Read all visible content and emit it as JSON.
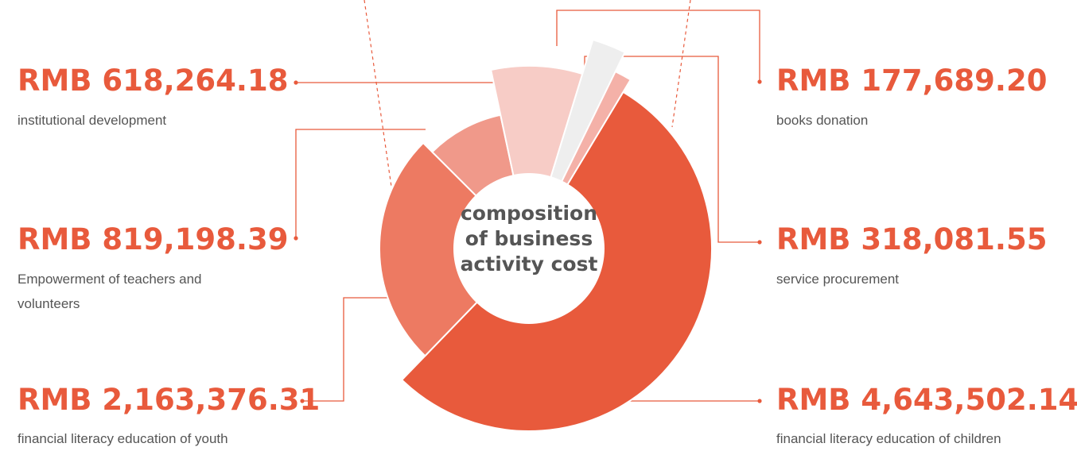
{
  "chart_data": {
    "type": "pie",
    "title": "composition of business activity cost",
    "currency": "RMB",
    "slices": [
      {
        "amount_text": "RMB 4,643,502.14",
        "value": 4643502.14,
        "label": "financial literacy education of children",
        "color": "#e85a3c"
      },
      {
        "amount_text": "RMB 2,163,376.31",
        "value": 2163376.31,
        "label": "financial literacy education of youth",
        "color": "#ed7a62"
      },
      {
        "amount_text": "RMB 819,198.39",
        "value": 819198.39,
        "label": "Empowerment of teachers and volunteers",
        "color": "#f0998a"
      },
      {
        "amount_text": "RMB 618,264.18",
        "value": 618264.18,
        "label": "institutional development",
        "color": "#f7ccc6"
      },
      {
        "amount_text": "RMB 177,689.20",
        "value": 177689.2,
        "label": "books donation",
        "color": "#eeeeee"
      },
      {
        "amount_text": "RMB 318,081.55",
        "value": 318081.55,
        "label": "service procurement",
        "color": "#f4b1a8"
      }
    ]
  },
  "colors": {
    "accent": "#e85a3c",
    "line": "#e85a3c",
    "text": "#555555"
  }
}
